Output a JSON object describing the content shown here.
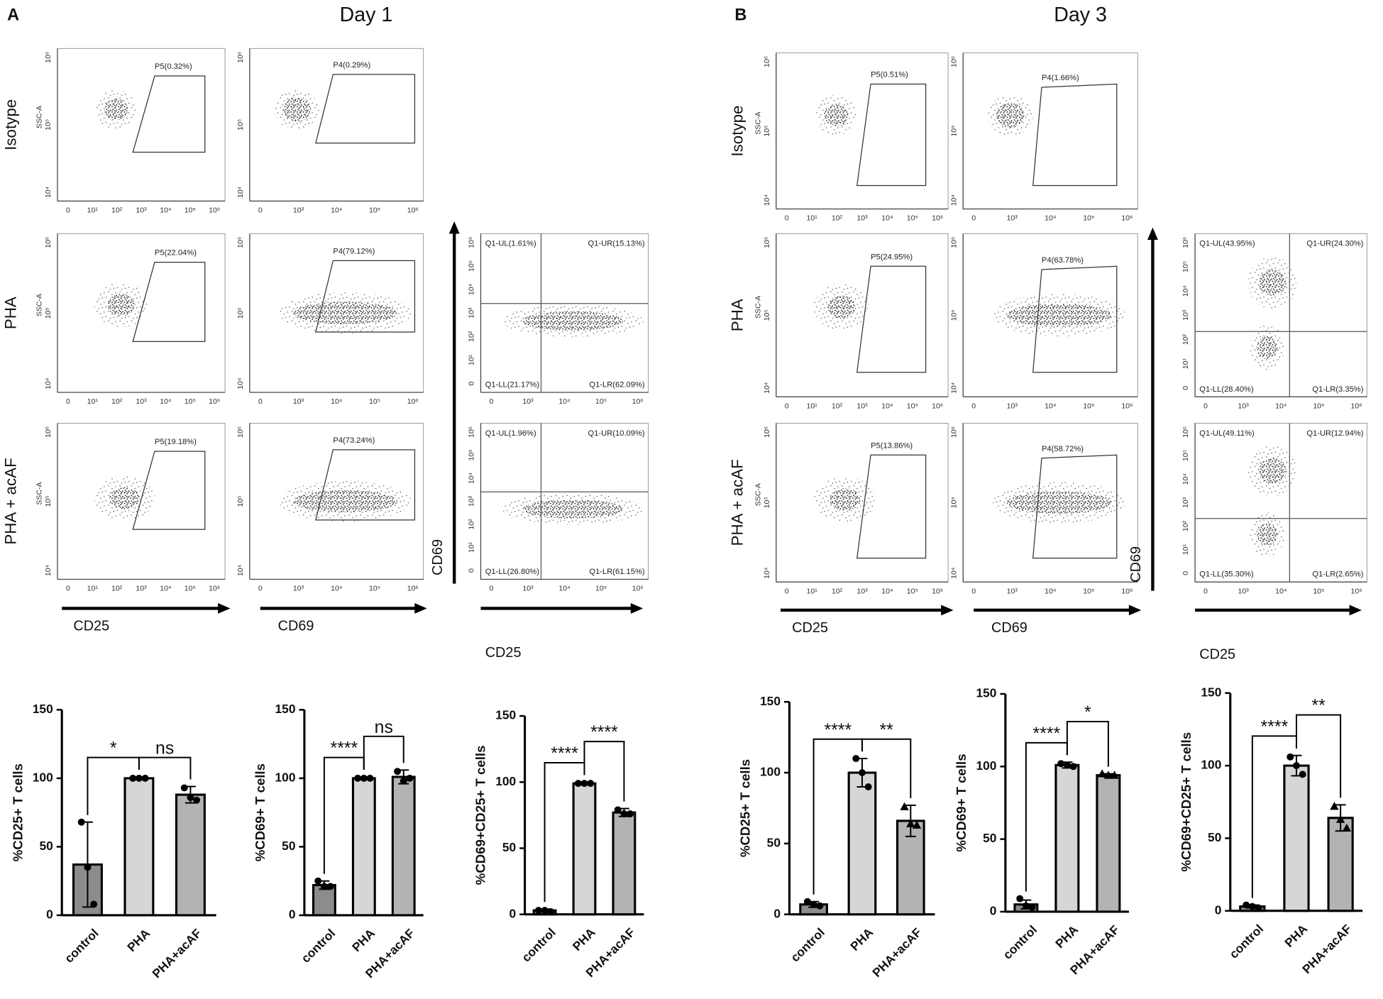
{
  "flow": {
    "ssc_label": "SSC-A",
    "gate_yticks": [
      "10⁴",
      "10⁵",
      "10⁶"
    ],
    "cd25_xticks": [
      "0",
      "10¹",
      "10²",
      "10³",
      "10⁴",
      "10⁵",
      "10⁶"
    ],
    "cd69_xticks": [
      "0",
      "10³",
      "10⁴",
      "10⁵",
      "10⁶"
    ],
    "quad_xticks": [
      "0",
      "10³",
      "10⁴",
      "10⁵",
      "10⁶"
    ],
    "quad_yticks": [
      "0",
      "10¹",
      "10²",
      "10³",
      "10⁴",
      "10⁵",
      "10⁶"
    ],
    "panels": [
      {
        "letter": "A",
        "title": "Day 1",
        "rows": [
          "Isotype",
          "PHA",
          "PHA + acAF"
        ],
        "cd25_gates": [
          "P5(0.32%)",
          "P5(22.04%)",
          "P5(19.18%)"
        ],
        "cd69_gates": [
          "P4(0.29%)",
          "P4(79.12%)",
          "P4(73.24%)"
        ],
        "quadrants": [
          [
            "Q1-UL(1.61%)",
            "Q1-UR(15.13%)",
            "Q1-LL(21.17%)",
            "Q1-LR(62.09%)"
          ],
          [
            "Q1-UL(1.96%)",
            "Q1-UR(10.09%)",
            "Q1-LL(26.80%)",
            "Q1-LR(61.15%)"
          ]
        ],
        "x_cd25": "CD25",
        "x_cd69": "CD69",
        "quad_y": "CD69",
        "quad_x": "CD25"
      },
      {
        "letter": "B",
        "title": "Day 3",
        "rows": [
          "Isotype",
          "PHA",
          "PHA + acAF"
        ],
        "cd25_gates": [
          "P5(0.51%)",
          "P5(24.95%)",
          "P5(13.86%)"
        ],
        "cd69_gates": [
          "P4(1.66%)",
          "P4(63.78%)",
          "P4(58.72%)"
        ],
        "quadrants": [
          [
            "Q1-UL(43.95%)",
            "Q1-UR(24.30%)",
            "Q1-LL(28.40%)",
            "Q1-LR(3.35%)"
          ],
          [
            "Q1-UL(49.11%)",
            "Q1-UR(12.94%)",
            "Q1-LL(35.30%)",
            "Q1-LR(2.65%)"
          ]
        ],
        "x_cd25": "CD25",
        "x_cd69": "CD69",
        "quad_y": "CD69",
        "quad_x": "CD25"
      }
    ]
  },
  "chart_data": [
    {
      "type": "bar",
      "y_label": "%CD25+ T cells",
      "categories": [
        "control",
        "PHA",
        "PHA+acAF"
      ],
      "colors": [
        "#8c8c8c",
        "#d6d6d6",
        "#b3b3b3"
      ],
      "values": [
        37,
        100,
        88
      ],
      "errors": [
        31,
        1,
        6
      ],
      "points": [
        [
          68,
          35,
          8
        ],
        [
          100,
          100,
          100
        ],
        [
          93,
          86,
          84
        ]
      ],
      "ylim": [
        0,
        150
      ],
      "yticks": [
        0,
        50,
        100,
        150
      ],
      "significance": [
        "*",
        "ns"
      ]
    },
    {
      "type": "bar",
      "y_label": "%CD69+ T cells",
      "categories": [
        "control",
        "PHA",
        "PHA+acAF"
      ],
      "colors": [
        "#8c8c8c",
        "#d6d6d6",
        "#b3b3b3"
      ],
      "values": [
        22,
        100,
        101
      ],
      "errors": [
        3,
        1,
        5
      ],
      "points": [
        [
          25,
          21,
          21
        ],
        [
          100,
          100,
          100
        ],
        [
          105,
          98,
          100
        ]
      ],
      "ylim": [
        0,
        150
      ],
      "yticks": [
        0,
        50,
        100,
        150
      ],
      "significance": [
        "****",
        "ns"
      ]
    },
    {
      "type": "bar",
      "y_label": "%CD69+CD25+ T cells",
      "categories": [
        "control",
        "PHA",
        "PHA+acAF"
      ],
      "colors": [
        "#8c8c8c",
        "#d6d6d6",
        "#b3b3b3"
      ],
      "values": [
        3,
        99,
        77
      ],
      "errors": [
        1,
        1,
        3
      ],
      "points": [
        [
          3,
          3,
          2
        ],
        [
          99,
          99,
          99
        ],
        [
          79,
          76,
          76
        ]
      ],
      "ylim": [
        0,
        150
      ],
      "yticks": [
        0,
        50,
        100,
        150
      ],
      "significance": [
        "****",
        "****"
      ]
    },
    {
      "type": "bar",
      "y_label": "%CD25+ T cells",
      "categories": [
        "control",
        "PHA",
        "PHA+acAF"
      ],
      "colors": [
        "#8c8c8c",
        "#d6d6d6",
        "#b3b3b3"
      ],
      "values": [
        7,
        100,
        66
      ],
      "errors": [
        2,
        10,
        11
      ],
      "points": [
        [
          9,
          7,
          6
        ],
        [
          110,
          100,
          90
        ],
        [
          76,
          64,
          63
        ]
      ],
      "ylim": [
        0,
        150
      ],
      "yticks": [
        0,
        50,
        100,
        150
      ],
      "significance": [
        "****",
        "**"
      ]
    },
    {
      "type": "bar",
      "y_label": "%CD69+ T cells",
      "categories": [
        "control",
        "PHA",
        "PHA+acAF"
      ],
      "colors": [
        "#8c8c8c",
        "#d6d6d6",
        "#b3b3b3"
      ],
      "values": [
        5,
        101,
        94
      ],
      "errors": [
        3,
        2,
        1
      ],
      "points": [
        [
          9,
          4,
          3
        ],
        [
          102,
          101,
          100
        ],
        [
          95,
          94,
          94
        ]
      ],
      "ylim": [
        0,
        150
      ],
      "yticks": [
        0,
        50,
        100,
        150
      ],
      "significance": [
        "****",
        "*"
      ]
    },
    {
      "type": "bar",
      "y_label": "%CD69+CD25+ T cells",
      "categories": [
        "control",
        "PHA",
        "PHA+acAF"
      ],
      "colors": [
        "#8c8c8c",
        "#d6d6d6",
        "#b3b3b3"
      ],
      "values": [
        3,
        100,
        64
      ],
      "errors": [
        1,
        7,
        9
      ],
      "points": [
        [
          4,
          3,
          2
        ],
        [
          106,
          100,
          94
        ],
        [
          72,
          63,
          57
        ]
      ],
      "ylim": [
        0,
        150
      ],
      "yticks": [
        0,
        50,
        100,
        150
      ],
      "significance": [
        "****",
        "**"
      ]
    }
  ]
}
